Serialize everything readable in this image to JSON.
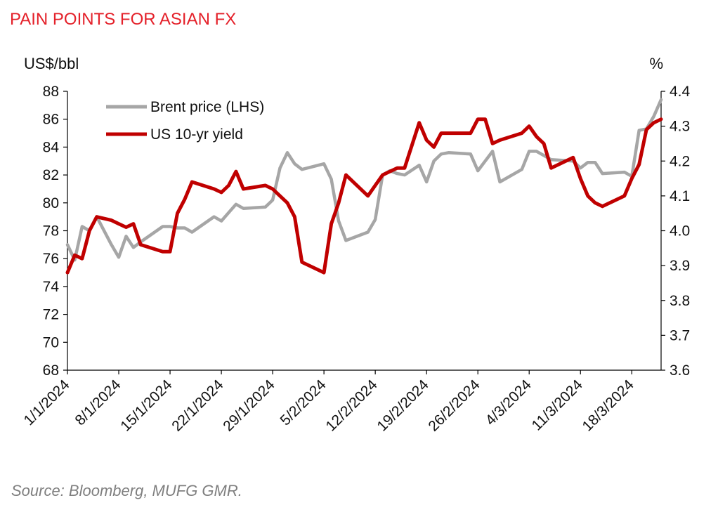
{
  "title": "PAIN POINTS FOR ASIAN FX",
  "source": "Source: Bloomberg, MUFG GMR.",
  "colors": {
    "title": "#e4212a",
    "brent": "#a6a6a6",
    "yield": "#c00000",
    "axis": "#000000"
  },
  "chart_data": {
    "type": "line",
    "left_axis": {
      "label": "US$/bbl",
      "min": 68,
      "max": 88,
      "step": 2,
      "ticks": [
        "68",
        "70",
        "72",
        "74",
        "76",
        "78",
        "80",
        "82",
        "84",
        "86",
        "88"
      ]
    },
    "right_axis": {
      "label": "%",
      "min": 3.6,
      "max": 4.4,
      "step": 0.1,
      "ticks": [
        "3.6",
        "3.7",
        "3.8",
        "3.9",
        "4.0",
        "4.1",
        "4.2",
        "4.3",
        "4.4"
      ]
    },
    "x_axis": {
      "min_day": 0,
      "max_day": 81,
      "tick_days": [
        0,
        7,
        14,
        21,
        28,
        35,
        42,
        49,
        56,
        63,
        70,
        77
      ],
      "tick_labels": [
        "1/1/2024",
        "8/1/2024",
        "15/1/2024",
        "22/1/2024",
        "29/1/2024",
        "5/2/2024",
        "12/2/2024",
        "19/2/2024",
        "26/2/2024",
        "4/3/2024",
        "11/3/2024",
        "18/3/2024"
      ]
    },
    "legend": {
      "placement": "top-left",
      "entries": [
        "Brent price (LHS)",
        "US 10-yr yield"
      ]
    },
    "series": [
      {
        "name": "Brent price (LHS)",
        "axis": "left",
        "x": [
          0,
          1,
          2,
          3,
          4,
          6,
          7,
          8,
          9,
          10,
          13,
          14,
          15,
          16,
          17,
          20,
          21,
          22,
          23,
          24,
          27,
          28,
          29,
          30,
          31,
          32,
          35,
          36,
          37,
          38,
          41,
          42,
          43,
          44,
          45,
          46,
          48,
          49,
          50,
          51,
          52,
          55,
          56,
          57,
          58,
          59,
          62,
          63,
          64,
          65,
          66,
          69,
          70,
          71,
          72,
          73,
          76,
          77,
          78,
          79,
          80,
          81
        ],
        "values": [
          77.0,
          75.9,
          78.3,
          78.0,
          79.0,
          77.0,
          76.1,
          77.6,
          76.8,
          77.2,
          78.3,
          78.3,
          78.2,
          78.2,
          77.9,
          79.0,
          78.7,
          79.3,
          79.9,
          79.6,
          79.7,
          80.2,
          82.5,
          83.6,
          82.8,
          82.4,
          82.8,
          81.7,
          78.7,
          77.3,
          77.9,
          78.8,
          82.0,
          82.3,
          82.1,
          82.0,
          82.7,
          81.5,
          83.0,
          83.5,
          83.6,
          83.5,
          82.3,
          83.0,
          83.7,
          81.5,
          82.4,
          83.7,
          83.7,
          83.4,
          83.1,
          83.0,
          82.5,
          82.9,
          82.9,
          82.1,
          82.2,
          81.9,
          85.2,
          85.3,
          86.2,
          87.4
        ]
      },
      {
        "name": "US 10-yr yield",
        "axis": "right",
        "x": [
          0,
          1,
          2,
          3,
          4,
          6,
          7,
          8,
          9,
          10,
          13,
          14,
          15,
          16,
          17,
          20,
          21,
          22,
          23,
          24,
          27,
          28,
          29,
          30,
          31,
          32,
          35,
          36,
          37,
          38,
          41,
          42,
          43,
          44,
          45,
          46,
          48,
          49,
          50,
          51,
          52,
          55,
          56,
          57,
          58,
          59,
          62,
          63,
          64,
          65,
          66,
          69,
          70,
          71,
          72,
          73,
          76,
          77,
          78,
          79,
          80,
          81
        ],
        "values": [
          3.88,
          3.93,
          3.92,
          4.0,
          4.04,
          4.03,
          4.02,
          4.01,
          4.02,
          3.96,
          3.94,
          3.94,
          4.05,
          4.09,
          4.14,
          4.12,
          4.11,
          4.13,
          4.17,
          4.12,
          4.13,
          4.12,
          4.1,
          4.08,
          4.04,
          3.91,
          3.88,
          4.02,
          4.08,
          4.16,
          4.1,
          4.13,
          4.16,
          4.17,
          4.18,
          4.18,
          4.31,
          4.26,
          4.24,
          4.28,
          4.28,
          4.28,
          4.32,
          4.32,
          4.25,
          4.26,
          4.28,
          4.3,
          4.27,
          4.25,
          4.18,
          4.21,
          4.15,
          4.1,
          4.08,
          4.07,
          4.1,
          4.15,
          4.19,
          4.29,
          4.31,
          4.32
        ]
      }
    ]
  }
}
